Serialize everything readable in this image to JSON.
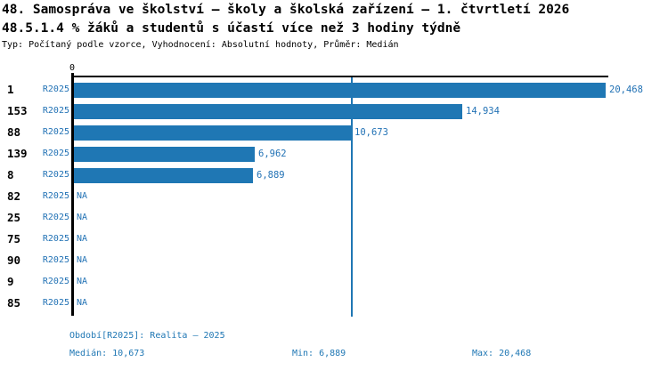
{
  "header": {
    "title": "48. Samospráva ve školství – školy a školská zařízení – 1. čtvrtletí 2026",
    "subtitle": "48.5.1.4 % žáků a studentů s účastí více než 3 hodiny týdně",
    "meta": "Typ: Počítaný podle vzorce, Vyhodnocení: Absolutní hodnoty, Průměr: Medián"
  },
  "chart_data": {
    "type": "bar",
    "orientation": "horizontal",
    "title": "48. Samospráva ve školství – školy a školská zařízení – 1. čtvrtletí 2026",
    "subtitle": "48.5.1.4 % žáků a studentů s účastí více než 3 hodiny týdně",
    "series_label": "R2025",
    "categories": [
      "1",
      "153",
      "88",
      "139",
      "8",
      "82",
      "25",
      "75",
      "90",
      "9",
      "85"
    ],
    "values": [
      20468,
      14934,
      10673,
      6962,
      6889,
      null,
      null,
      null,
      null,
      null,
      null
    ],
    "value_labels": [
      "20,468",
      "14,934",
      "10,673",
      "6,962",
      "6,889",
      "NA",
      "NA",
      "NA",
      "NA",
      "NA",
      "NA"
    ],
    "na_text": "NA",
    "zero_tick": "0",
    "xlim": [
      0,
      20468
    ],
    "median_value": 10673,
    "grid": false,
    "legend": "none",
    "bar_color": "#1f77b4",
    "median_line_color": "#1f77b4",
    "axis_color": "#000000",
    "label_color": "#2272b5"
  },
  "footer": {
    "period": "Období[R2025]: Realita – 2025",
    "median": "Medián: 10,673",
    "min": "Min: 6,889",
    "max": "Max: 20,468"
  },
  "colors": {
    "background": "#ffffff",
    "accent_blue": "#1f77b4"
  }
}
